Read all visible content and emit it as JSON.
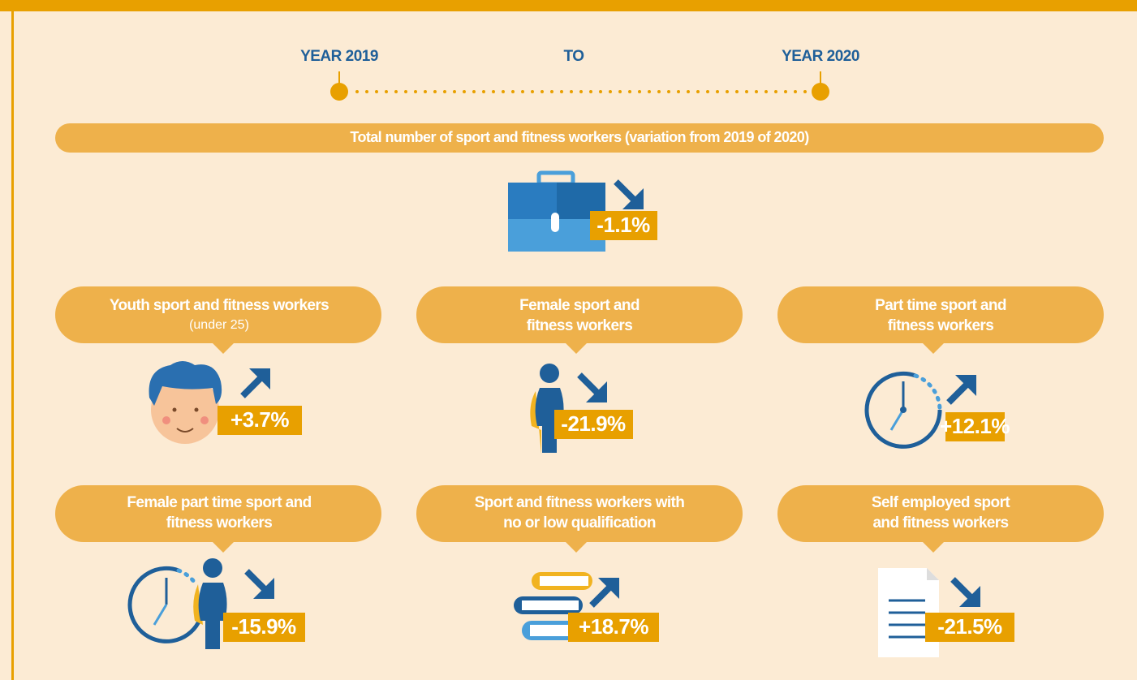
{
  "timeline": {
    "start": "YEAR 2019",
    "middle": "TO",
    "end": "YEAR 2020"
  },
  "banner": "Total number of sport and fitness workers (variation from 2019 of 2020)",
  "total_value": "-1.1%",
  "cards": [
    {
      "title": [
        "Youth sport and fitness workers"
      ],
      "subtitle": "(under 25)",
      "value": "+3.7%"
    },
    {
      "title": [
        "Female sport and",
        "fitness workers"
      ],
      "value": "-21.9%"
    },
    {
      "title": [
        "Part time sport and",
        "fitness workers"
      ],
      "value": "+12.1%"
    },
    {
      "title": [
        "Female part time sport and",
        "fitness workers"
      ],
      "value": "-15.9%"
    },
    {
      "title": [
        "Sport and fitness workers with",
        "no or low qualification"
      ],
      "value": "+18.7%"
    },
    {
      "title": [
        "Self employed sport",
        "and fitness workers"
      ],
      "value": "-21.5%"
    }
  ]
}
